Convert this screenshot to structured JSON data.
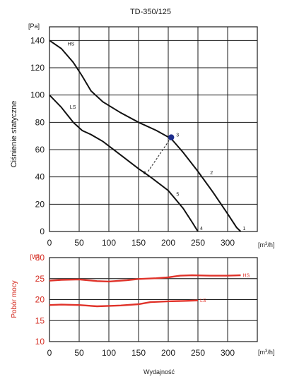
{
  "chart_data": [
    {
      "type": "line",
      "title": "TD-350/125",
      "ylabel": "Ciśnienie statyczne",
      "yunit": "[Pa]",
      "xunit": "[m3/h]",
      "xlim": [
        0,
        350
      ],
      "ylim": [
        0,
        150
      ],
      "x_ticks": [
        "0",
        "50",
        "100",
        "150",
        "200",
        "250",
        "300"
      ],
      "y_ticks": [
        "0",
        "20",
        "40",
        "60",
        "80",
        "100",
        "120",
        "140"
      ],
      "grid": true,
      "series": [
        {
          "name": "HS",
          "x": [
            0,
            20,
            40,
            55,
            70,
            90,
            120,
            150,
            180,
            205,
            225,
            250,
            275,
            300,
            315,
            322
          ],
          "y": [
            140,
            134,
            124,
            114,
            103,
            95,
            87,
            80,
            74,
            68,
            58,
            44,
            29,
            13,
            3,
            0
          ]
        },
        {
          "name": "LS",
          "x": [
            0,
            20,
            40,
            55,
            70,
            90,
            120,
            150,
            170,
            200,
            225,
            240,
            250
          ],
          "y": [
            100,
            91,
            80,
            74,
            71,
            66,
            56,
            46,
            40,
            30,
            17,
            7,
            0
          ]
        }
      ],
      "operating_point": {
        "label": "3",
        "x": 205,
        "y": 69
      },
      "annotations": [
        {
          "text": "1",
          "x": 322,
          "y": 0
        },
        {
          "text": "2",
          "x": 267,
          "y": 42
        },
        {
          "text": "3",
          "x": 205,
          "y": 69
        },
        {
          "text": "4",
          "x": 250,
          "y": 0
        },
        {
          "text": "5",
          "x": 210,
          "y": 25
        },
        {
          "text": "6",
          "x": 170,
          "y": 45
        }
      ],
      "guide_line": {
        "x": [
          166,
          205
        ],
        "y": 44,
        "y_end": 69
      }
    },
    {
      "type": "line",
      "ylabel": "Pobór mocy",
      "yunit": "[W]",
      "xunit": "[m3/h]",
      "xlabel": "Wydajność",
      "xlim": [
        0,
        350
      ],
      "ylim": [
        10,
        30
      ],
      "x_ticks": [
        "0",
        "50",
        "100",
        "150",
        "200",
        "250",
        "300"
      ],
      "y_ticks": [
        "10",
        "15",
        "20",
        "25",
        "30"
      ],
      "grid": true,
      "series": [
        {
          "name": "HS",
          "x": [
            0,
            20,
            50,
            80,
            100,
            130,
            150,
            180,
            200,
            220,
            240,
            270,
            300,
            322
          ],
          "y": [
            24.5,
            24.7,
            24.8,
            24.4,
            24.3,
            24.6,
            24.9,
            25.1,
            25.3,
            25.7,
            25.8,
            25.7,
            25.7,
            25.8
          ]
        },
        {
          "name": "LS",
          "x": [
            0,
            20,
            50,
            80,
            100,
            120,
            150,
            170,
            200,
            230,
            250
          ],
          "y": [
            18.7,
            18.8,
            18.7,
            18.4,
            18.5,
            18.6,
            18.9,
            19.4,
            19.6,
            19.7,
            19.8
          ]
        }
      ],
      "reference_line": {
        "y": 25.0
      }
    }
  ],
  "colors": {
    "axes": "#1a1a1a",
    "curves_pressure": "#111111",
    "curves_power": "#e0332a",
    "power_axis_text": "#d42a1f",
    "operating_point": "#1c2c8c"
  }
}
